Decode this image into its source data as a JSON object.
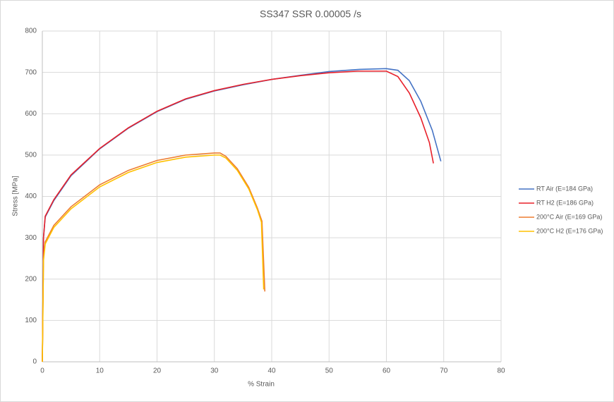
{
  "chart_data": {
    "type": "line",
    "title": "SS347 SSR 0.00005 /s",
    "x_label": "% Strain",
    "y_label": "Stress [MPa]",
    "xlim": [
      0,
      80
    ],
    "xticks": [
      0,
      10,
      20,
      30,
      40,
      50,
      60,
      70,
      80
    ],
    "ylim": [
      0,
      800
    ],
    "yticks": [
      0,
      100,
      200,
      300,
      400,
      500,
      600,
      700,
      800
    ],
    "grid": true,
    "legend": "right",
    "series": [
      {
        "name": "RT Air (E=184 GPa)",
        "color": "#4472c4",
        "x": [
          0,
          0.2,
          0.5,
          2,
          5,
          10,
          15,
          20,
          25,
          30,
          35,
          40,
          45,
          50,
          55,
          60,
          62,
          64,
          66,
          68,
          69.5
        ],
        "values": [
          0,
          300,
          350,
          390,
          450,
          515,
          565,
          605,
          635,
          655,
          670,
          683,
          693,
          702,
          707,
          709,
          705,
          680,
          630,
          560,
          485
        ]
      },
      {
        "name": "RT H2 (E=186 GPa)",
        "color": "#e8202a",
        "x": [
          0,
          0.2,
          0.5,
          2,
          5,
          10,
          15,
          20,
          25,
          30,
          35,
          40,
          45,
          50,
          55,
          60,
          62,
          64,
          66,
          67.5,
          68.2
        ],
        "values": [
          0,
          300,
          352,
          392,
          452,
          516,
          566,
          606,
          636,
          656,
          671,
          683,
          692,
          699,
          703,
          703,
          690,
          650,
          590,
          530,
          480
        ]
      },
      {
        "name": "200°C Air (E=169 GPa)",
        "color": "#ed7d31",
        "x": [
          0,
          0.2,
          0.5,
          2,
          5,
          10,
          15,
          20,
          25,
          30,
          31,
          32,
          34,
          36,
          37.5,
          38.3,
          38.8
        ],
        "values": [
          0,
          250,
          290,
          330,
          375,
          428,
          463,
          487,
          500,
          505,
          505,
          497,
          467,
          422,
          372,
          340,
          170
        ]
      },
      {
        "name": "200°C H2 (E=176 GPa)",
        "color": "#ffc000",
        "x": [
          0,
          0.2,
          0.5,
          2,
          5,
          10,
          15,
          20,
          25,
          30,
          31,
          32,
          34,
          36,
          37.5,
          38.2,
          38.6
        ],
        "values": [
          0,
          245,
          285,
          325,
          370,
          423,
          458,
          482,
          495,
          500,
          500,
          493,
          463,
          418,
          368,
          338,
          175
        ]
      }
    ]
  }
}
